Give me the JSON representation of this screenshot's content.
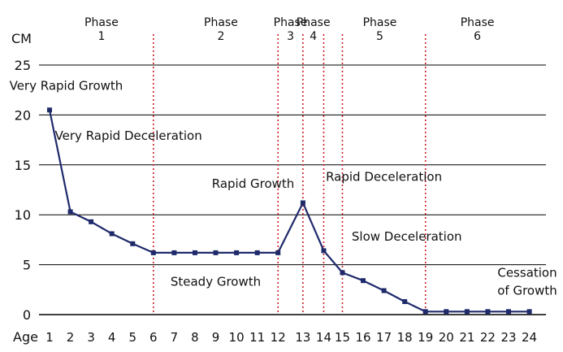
{
  "chart_data": {
    "type": "line",
    "y_unit": "CM",
    "x_axis_label": "Age",
    "ylim": [
      0,
      25
    ],
    "y_ticks": [
      0,
      5,
      10,
      15,
      20,
      25
    ],
    "grid": "horizontal",
    "x": [
      1,
      2,
      3,
      4,
      5,
      6,
      7,
      8,
      9,
      10,
      11,
      12,
      13,
      14,
      15,
      16,
      17,
      18,
      19,
      20,
      21,
      22,
      23,
      24
    ],
    "x_values": [
      1,
      2,
      3,
      4,
      5,
      6,
      7,
      8,
      9,
      10,
      11,
      12,
      13.2,
      14.2,
      15.1,
      16.1,
      17.1,
      18.1,
      19.1,
      20.1,
      21.1,
      22.1,
      23.1,
      24.1
    ],
    "series": [
      {
        "values": [
          20.5,
          10.3,
          9.3,
          8.1,
          7.1,
          6.2,
          6.2,
          6.2,
          6.2,
          6.2,
          6.2,
          6.2,
          11.2,
          6.4,
          4.2,
          3.4,
          2.4,
          1.3,
          0.3,
          0.3,
          0.3,
          0.3,
          0.3,
          0.3
        ],
        "color": "#1f2a6b"
      }
    ],
    "phase_boundaries": [
      6,
      12,
      13.2,
      14.2,
      15.1,
      19.1
    ],
    "phases": [
      {
        "line1": "Phase",
        "line2": "1",
        "center": 3.5
      },
      {
        "line1": "Phase",
        "line2": "2",
        "center": 9.25
      },
      {
        "line1": "Phase",
        "line2": "3",
        "center": 12.6
      },
      {
        "line1": "Phase",
        "line2": "4",
        "center": 13.7
      },
      {
        "line1": "Phase",
        "line2": "5",
        "center": 16.9
      },
      {
        "line1": "Phase",
        "line2": "6",
        "center": 21.6
      }
    ],
    "annotations": [
      {
        "text": "Very Rapid Growth",
        "x": 1.8,
        "y": 22.5,
        "anchor": "middle"
      },
      {
        "text": "Very Rapid Deceleration",
        "x": 4.8,
        "y": 17.5,
        "anchor": "middle"
      },
      {
        "text": "Rapid Growth",
        "x": 10.8,
        "y": 12.7,
        "anchor": "middle"
      },
      {
        "text": "Rapid Deceleration",
        "x": 17.1,
        "y": 13.4,
        "anchor": "middle"
      },
      {
        "text": "Slow Deceleration",
        "x": 18.2,
        "y": 7.4,
        "anchor": "middle"
      },
      {
        "text": "Steady Growth",
        "x": 9.0,
        "y": 2.9,
        "anchor": "middle"
      },
      {
        "text": "Cessation",
        "x": 24.0,
        "y": 3.8,
        "anchor": "middle"
      },
      {
        "text": "of Growth",
        "x": 24.0,
        "y": 2.0,
        "anchor": "middle"
      }
    ],
    "colors": {
      "line": "#1f2a6b",
      "phase_divider": "#d0202a",
      "grid": "#000000"
    }
  }
}
